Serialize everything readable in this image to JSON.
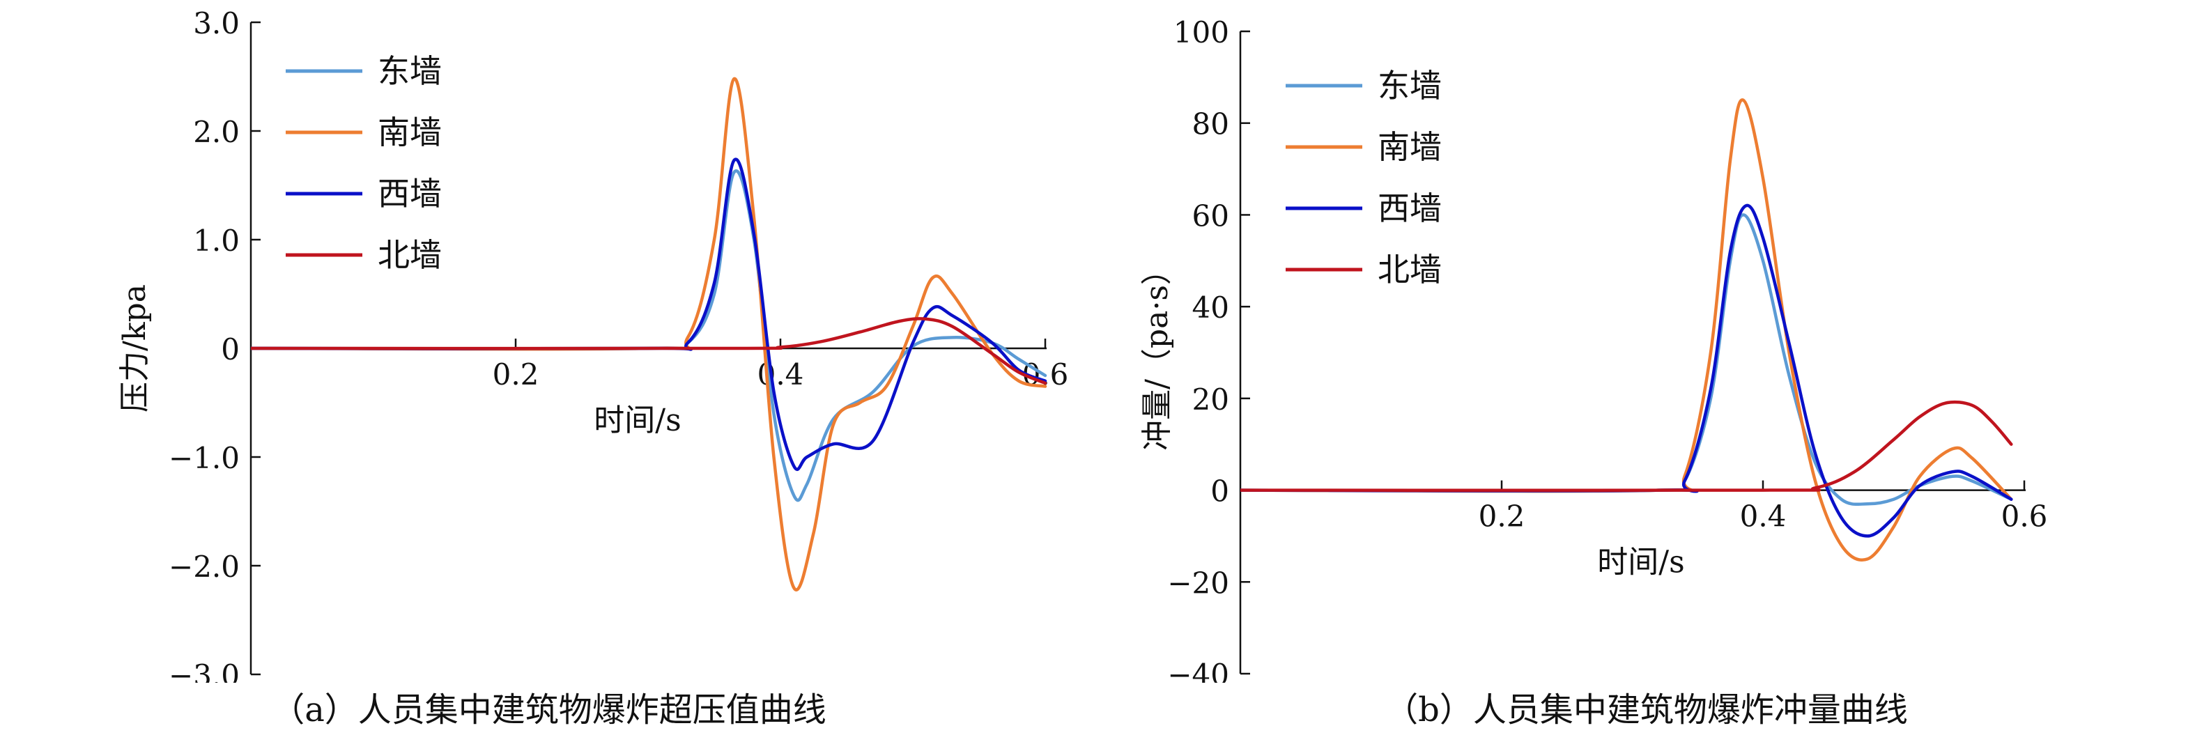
{
  "chart_data": [
    {
      "type": "line",
      "caption": "（a）人员集中建筑物爆炸超压值曲线",
      "xlabel": "时间/s",
      "ylabel": "压力/kpa",
      "xlim": [
        0,
        0.6
      ],
      "ylim": [
        -3.0,
        3.0
      ],
      "x_ticks": [
        0.2,
        0.4,
        0.6
      ],
      "y_ticks": [
        3.0,
        2.0,
        1.0,
        0,
        -1.0,
        -2.0,
        -3.0
      ],
      "x_tick_labels": [
        "0.2",
        "0.4",
        "0.6"
      ],
      "y_tick_labels": [
        "3.0",
        "2.0",
        "1.0",
        "0",
        "−1.0",
        "−2.0",
        "−3.0"
      ],
      "legend_position": "top-left",
      "series": [
        {
          "name": "东墙",
          "color": "#5B9BD5",
          "x": [
            0,
            0.3,
            0.33,
            0.35,
            0.365,
            0.38,
            0.395,
            0.41,
            0.42,
            0.44,
            0.47,
            0.5,
            0.53,
            0.56,
            0.58,
            0.6
          ],
          "y": [
            0,
            0,
            0.05,
            0.5,
            1.62,
            1.0,
            -0.6,
            -1.35,
            -1.25,
            -0.65,
            -0.4,
            0.02,
            0.1,
            0.05,
            -0.1,
            -0.25
          ]
        },
        {
          "name": "南墙",
          "color": "#ED7D31",
          "x": [
            0,
            0.3,
            0.33,
            0.35,
            0.365,
            0.38,
            0.395,
            0.41,
            0.425,
            0.44,
            0.46,
            0.48,
            0.5,
            0.515,
            0.53,
            0.56,
            0.58,
            0.6
          ],
          "y": [
            0,
            0,
            0.1,
            1.0,
            2.48,
            1.2,
            -1.0,
            -2.2,
            -1.7,
            -0.7,
            -0.5,
            -0.35,
            0.2,
            0.65,
            0.5,
            -0.05,
            -0.3,
            -0.35
          ]
        },
        {
          "name": "西墙",
          "color": "#0A10C8",
          "x": [
            0,
            0.3,
            0.33,
            0.35,
            0.365,
            0.38,
            0.395,
            0.41,
            0.42,
            0.44,
            0.47,
            0.5,
            0.515,
            0.53,
            0.56,
            0.58,
            0.6
          ],
          "y": [
            0,
            0,
            0.05,
            0.6,
            1.73,
            1.05,
            -0.4,
            -1.08,
            -1.0,
            -0.88,
            -0.85,
            0.05,
            0.37,
            0.3,
            0.05,
            -0.2,
            -0.3
          ]
        },
        {
          "name": "北墙",
          "color": "#C0141E",
          "x": [
            0,
            0.36,
            0.4,
            0.43,
            0.46,
            0.49,
            0.51,
            0.53,
            0.56,
            0.58,
            0.6
          ],
          "y": [
            0,
            0,
            0.01,
            0.06,
            0.15,
            0.25,
            0.27,
            0.2,
            -0.05,
            -0.22,
            -0.32
          ]
        }
      ]
    },
    {
      "type": "line",
      "caption": "（b）人员集中建筑物爆炸冲量曲线",
      "xlabel": "时间/s",
      "ylabel": "冲量/（pa·s）",
      "xlim": [
        0,
        0.6
      ],
      "ylim": [
        -40,
        100
      ],
      "x_ticks": [
        0.2,
        0.4,
        0.6
      ],
      "y_ticks": [
        100,
        80,
        60,
        40,
        20,
        0,
        -20,
        -40
      ],
      "x_tick_labels": [
        "0.2",
        "0.4",
        "0.6"
      ],
      "y_tick_labels": [
        "100",
        "80",
        "60",
        "40",
        "20",
        "0",
        "−20",
        "−40"
      ],
      "legend_position": "top-left",
      "series": [
        {
          "name": "东墙",
          "color": "#5B9BD5",
          "x": [
            0,
            0.32,
            0.34,
            0.36,
            0.375,
            0.385,
            0.4,
            0.42,
            0.44,
            0.46,
            0.48,
            0.5,
            0.52,
            0.545,
            0.56,
            0.59
          ],
          "y": [
            0,
            0,
            2,
            20,
            50,
            60,
            50,
            25,
            6,
            -2,
            -3,
            -2,
            1,
            3,
            2,
            -2
          ]
        },
        {
          "name": "南墙",
          "color": "#ED7D31",
          "x": [
            0,
            0.32,
            0.34,
            0.36,
            0.375,
            0.385,
            0.4,
            0.42,
            0.44,
            0.46,
            0.48,
            0.5,
            0.52,
            0.545,
            0.56,
            0.59
          ],
          "y": [
            0,
            0,
            3,
            30,
            72,
            85,
            68,
            30,
            2,
            -12,
            -15,
            -8,
            3,
            9,
            7,
            -2
          ]
        },
        {
          "name": "西墙",
          "color": "#0A10C8",
          "x": [
            0,
            0.32,
            0.34,
            0.36,
            0.375,
            0.387,
            0.4,
            0.42,
            0.44,
            0.46,
            0.48,
            0.5,
            0.52,
            0.545,
            0.56,
            0.59
          ],
          "y": [
            0,
            0,
            2,
            22,
            52,
            62,
            55,
            32,
            8,
            -6,
            -10,
            -6,
            1,
            4,
            3,
            -2
          ]
        },
        {
          "name": "北墙",
          "color": "#C0141E",
          "x": [
            0,
            0.4,
            0.44,
            0.47,
            0.5,
            0.52,
            0.54,
            0.56,
            0.575,
            0.59
          ],
          "y": [
            0,
            0,
            0.5,
            4,
            11,
            16,
            19,
            18.5,
            15,
            10
          ]
        }
      ]
    }
  ]
}
